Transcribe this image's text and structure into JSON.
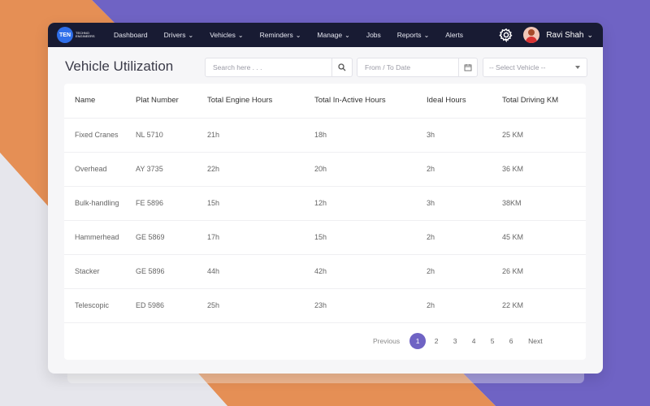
{
  "app": {
    "logo_text": "TEN",
    "logo_subtext": "TECHNO ENGINEERS"
  },
  "nav": {
    "items": [
      {
        "label": "Dashboard",
        "dropdown": false
      },
      {
        "label": "Drivers",
        "dropdown": true
      },
      {
        "label": "Vehicles",
        "dropdown": true
      },
      {
        "label": "Reminders",
        "dropdown": true
      },
      {
        "label": "Manage",
        "dropdown": true
      },
      {
        "label": "Jobs",
        "dropdown": false
      },
      {
        "label": "Reports",
        "dropdown": true
      },
      {
        "label": "Alerts",
        "dropdown": false
      }
    ],
    "settings_icon": "gear-icon",
    "user_name": "Ravi Shah"
  },
  "page": {
    "title": "Vehicle Utilization"
  },
  "filters": {
    "search_placeholder": "Search here . . .",
    "date_placeholder": "From / To Date",
    "vehicle_select": "-- Select Vehicle --"
  },
  "table": {
    "headers": [
      "Name",
      "Plat Number",
      "Total Engine Hours",
      "Total In-Active Hours",
      "Ideal Hours",
      "Total Driving KM"
    ],
    "rows": [
      [
        "Fixed Cranes",
        "NL 5710",
        "21h",
        "18h",
        "3h",
        "25 KM"
      ],
      [
        "Overhead",
        "AY 3735",
        "22h",
        "20h",
        "2h",
        "36 KM"
      ],
      [
        "Bulk-handling",
        "FE 5896",
        "15h",
        "12h",
        "3h",
        "38KM"
      ],
      [
        "Hammerhead",
        "GE 5869",
        "17h",
        "15h",
        "2h",
        "45 KM"
      ],
      [
        "Stacker",
        "GE 5896",
        "44h",
        "42h",
        "2h",
        "26 KM"
      ],
      [
        "Telescopic",
        "ED 5986",
        "25h",
        "23h",
        "2h",
        "22 KM"
      ]
    ]
  },
  "pagination": {
    "previous": "Previous",
    "pages": [
      "1",
      "2",
      "3",
      "4",
      "5",
      "6"
    ],
    "current": "1",
    "next": "Next"
  },
  "colors": {
    "accent": "#6f63c4",
    "navbar": "#181b33",
    "background_orange": "#e58f55",
    "background_purple": "#6f63c4"
  }
}
